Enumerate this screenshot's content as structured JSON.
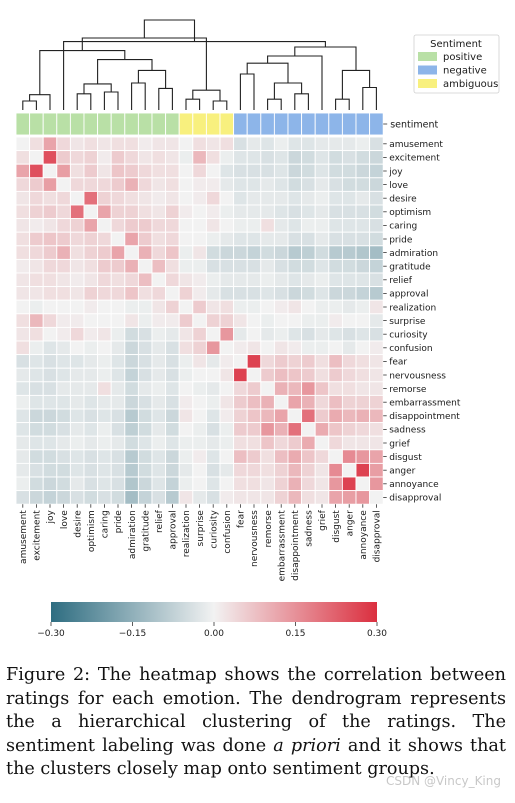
{
  "chart_data": {
    "type": "heatmap",
    "title": "",
    "xlabel": "",
    "ylabel": "",
    "labels": [
      "amusement",
      "excitement",
      "joy",
      "love",
      "desire",
      "optimism",
      "caring",
      "pride",
      "admiration",
      "gratitude",
      "relief",
      "approval",
      "realization",
      "surprise",
      "curiosity",
      "confusion",
      "fear",
      "nervousness",
      "remorse",
      "embarrassment",
      "disappointment",
      "sadness",
      "grief",
      "disgust",
      "anger",
      "annoyance",
      "disapproval"
    ],
    "sentiment": [
      "positive",
      "positive",
      "positive",
      "positive",
      "positive",
      "positive",
      "positive",
      "positive",
      "positive",
      "positive",
      "positive",
      "positive",
      "ambiguous",
      "ambiguous",
      "ambiguous",
      "ambiguous",
      "negative",
      "negative",
      "negative",
      "negative",
      "negative",
      "negative",
      "negative",
      "negative",
      "negative",
      "negative",
      "negative"
    ],
    "sentiment_row_label": "sentiment",
    "legend": {
      "title": "Sentiment",
      "placement": "top-right",
      "items": [
        {
          "label": "positive",
          "color": "#b9e0a6"
        },
        {
          "label": "negative",
          "color": "#8db5e9"
        },
        {
          "label": "ambiguous",
          "color": "#f8f07e"
        }
      ]
    },
    "colorbar": {
      "min": -0.3,
      "max": 0.3,
      "ticks": [
        -0.3,
        -0.15,
        0.0,
        0.15,
        0.3
      ],
      "tick_labels": [
        "−0.30",
        "−0.15",
        "0.00",
        "0.15",
        "0.30"
      ],
      "colors": {
        "low": "#2e6d81",
        "mid": "#f2f2f2",
        "high": "#db2f3f"
      }
    },
    "dendrogram": [
      [
        0,
        1,
        0.1
      ],
      [
        27,
        2,
        0.17
      ],
      [
        4,
        5,
        0.18
      ],
      [
        6,
        7,
        0.2
      ],
      [
        29,
        30,
        0.29
      ],
      [
        8,
        9,
        0.3
      ],
      [
        10,
        11,
        0.24
      ],
      [
        32,
        33,
        0.44
      ],
      [
        31,
        34,
        0.56
      ],
      [
        28,
        35,
        0.66
      ],
      [
        12,
        13,
        0.12
      ],
      [
        14,
        15,
        0.1
      ],
      [
        37,
        38,
        0.22
      ],
      [
        36,
        39,
        0.8
      ],
      [
        16,
        17,
        0.4
      ],
      [
        18,
        19,
        0.12
      ],
      [
        20,
        21,
        0.18
      ],
      [
        42,
        43,
        0.3
      ],
      [
        41,
        44,
        0.52
      ],
      [
        45,
        22,
        0.6
      ],
      [
        23,
        24,
        0.12
      ],
      [
        25,
        26,
        0.25
      ],
      [
        47,
        48,
        0.44
      ],
      [
        46,
        49,
        0.7
      ],
      [
        50,
        3,
        0.76
      ],
      [
        40,
        51,
        1.0
      ]
    ],
    "values": [
      [
        0,
        0.03,
        0.12,
        0.04,
        0.02,
        0.03,
        0.02,
        0.03,
        0.03,
        0.01,
        0.02,
        0.02,
        0,
        0.03,
        0.02,
        0.03,
        -0.04,
        -0.02,
        -0.03,
        -0.01,
        -0.03,
        -0.03,
        -0.02,
        -0.02,
        -0.02,
        -0.01,
        -0.04
      ],
      [
        0.03,
        0,
        0.25,
        0.06,
        0.04,
        0.05,
        0.01,
        0.06,
        0.04,
        0.02,
        0.03,
        0.02,
        -0.01,
        0.09,
        0.03,
        -0.01,
        -0.03,
        -0.03,
        -0.04,
        -0.03,
        -0.06,
        -0.05,
        -0.03,
        -0.05,
        -0.04,
        -0.05,
        -0.06
      ],
      [
        0.12,
        0.25,
        0,
        0.13,
        0.03,
        0.06,
        0.02,
        0.07,
        0.06,
        0.04,
        0.03,
        0.03,
        0,
        0.04,
        0,
        -0.03,
        -0.04,
        -0.04,
        -0.04,
        -0.03,
        -0.06,
        -0.05,
        -0.03,
        -0.05,
        -0.05,
        -0.06,
        -0.07
      ],
      [
        0.04,
        0.06,
        0.13,
        0,
        0.04,
        0.04,
        0.04,
        0.06,
        0.1,
        0.04,
        0.02,
        0.03,
        0,
        0.01,
        0.01,
        -0.02,
        -0.03,
        -0.03,
        -0.02,
        -0.03,
        -0.05,
        -0.04,
        -0.02,
        -0.04,
        -0.05,
        -0.05,
        -0.06
      ],
      [
        0.02,
        0.04,
        0.03,
        0.04,
        0,
        0.2,
        0.05,
        0.04,
        0.03,
        0.02,
        0.01,
        0.02,
        0,
        0.01,
        0.04,
        0,
        -0.03,
        -0.02,
        -0.02,
        -0.02,
        -0.03,
        -0.02,
        -0.01,
        -0.03,
        -0.03,
        -0.02,
        -0.04
      ],
      [
        0.03,
        0.05,
        0.06,
        0.04,
        0.2,
        0,
        0.12,
        0.05,
        0.05,
        0.03,
        0.02,
        0.05,
        0.01,
        0,
        0.01,
        -0.01,
        -0.02,
        -0.02,
        -0.02,
        -0.03,
        -0.04,
        -0.03,
        -0.02,
        -0.04,
        -0.04,
        -0.04,
        -0.05
      ],
      [
        0.02,
        0.01,
        0.02,
        0.04,
        0.05,
        0.12,
        0,
        0.04,
        0.06,
        0.06,
        0.04,
        0.04,
        0,
        0,
        0.02,
        0,
        -0.01,
        -0.01,
        0.03,
        -0.02,
        -0.03,
        -0.01,
        -0.01,
        -0.03,
        -0.03,
        -0.03,
        -0.04
      ],
      [
        0.03,
        0.06,
        0.07,
        0.06,
        0.04,
        0.05,
        0.04,
        0,
        0.12,
        0.06,
        0.03,
        0.04,
        0,
        0,
        -0.01,
        -0.02,
        -0.03,
        -0.03,
        -0.02,
        -0.02,
        -0.04,
        -0.04,
        -0.02,
        -0.04,
        -0.04,
        -0.04,
        -0.05
      ],
      [
        0.03,
        0.04,
        0.06,
        0.1,
        0.03,
        0.05,
        0.06,
        0.12,
        0,
        0.1,
        0.04,
        0.07,
        -0.01,
        0.02,
        -0.05,
        -0.06,
        -0.06,
        -0.07,
        -0.05,
        -0.06,
        -0.09,
        -0.08,
        -0.05,
        -0.09,
        -0.09,
        -0.1,
        -0.12
      ],
      [
        0.01,
        0.02,
        0.04,
        0.04,
        0.02,
        0.03,
        0.06,
        0.06,
        0.1,
        0,
        0.08,
        0.03,
        -0.01,
        -0.01,
        -0.04,
        -0.04,
        -0.04,
        -0.04,
        -0.02,
        -0.04,
        -0.05,
        -0.05,
        -0.03,
        -0.05,
        -0.05,
        -0.06,
        -0.07
      ],
      [
        0.02,
        0.03,
        0.03,
        0.02,
        0.01,
        0.02,
        0.04,
        0.03,
        0.04,
        0.08,
        0,
        0.04,
        0.02,
        0.01,
        -0.01,
        -0.02,
        -0.02,
        -0.02,
        -0.01,
        -0.02,
        -0.03,
        -0.02,
        -0.01,
        -0.03,
        -0.03,
        -0.03,
        -0.04
      ],
      [
        0.02,
        0.02,
        0.03,
        0.03,
        0.02,
        0.05,
        0.04,
        0.04,
        0.07,
        0.03,
        0.04,
        0,
        0.05,
        0.01,
        -0.02,
        -0.04,
        -0.04,
        -0.04,
        -0.03,
        -0.04,
        -0.06,
        -0.05,
        -0.03,
        -0.06,
        -0.06,
        -0.07,
        -0.09
      ],
      [
        0,
        -0.01,
        0,
        0,
        0,
        0.01,
        0,
        0,
        -0.01,
        -0.01,
        0.02,
        0.05,
        0,
        0.06,
        0.02,
        0.03,
        -0.01,
        -0.01,
        0,
        0.01,
        0.02,
        0,
        -0.01,
        -0.01,
        -0.02,
        -0.01,
        0.02
      ],
      [
        0.03,
        0.09,
        0.04,
        0.01,
        0.01,
        0,
        0,
        0,
        0.02,
        -0.01,
        0.01,
        0.01,
        0.06,
        0,
        0.05,
        0.05,
        0.02,
        0,
        -0.01,
        0,
        0,
        -0.01,
        -0.01,
        0.01,
        0,
        0,
        -0.02
      ],
      [
        0.02,
        0.03,
        0,
        0.01,
        0.04,
        0.01,
        0.02,
        -0.01,
        -0.05,
        -0.04,
        -0.01,
        -0.02,
        0.02,
        0.05,
        0,
        0.14,
        -0.02,
        0,
        -0.02,
        -0.01,
        -0.03,
        -0.04,
        -0.02,
        -0.03,
        -0.04,
        -0.03,
        -0.04
      ],
      [
        0.03,
        -0.01,
        -0.03,
        -0.02,
        0,
        -0.01,
        0,
        -0.02,
        -0.06,
        -0.04,
        -0.02,
        -0.04,
        0.03,
        0.05,
        0.14,
        0,
        0.01,
        0.02,
        0,
        0.02,
        0.01,
        -0.01,
        -0.01,
        0,
        -0.02,
        0,
        0.01
      ],
      [
        -0.04,
        -0.03,
        -0.04,
        -0.03,
        -0.03,
        -0.02,
        -0.01,
        -0.03,
        -0.06,
        -0.04,
        -0.02,
        -0.04,
        -0.01,
        0.02,
        -0.02,
        0.01,
        0,
        0.27,
        0.04,
        0.06,
        0.05,
        0.06,
        0.03,
        0.08,
        0.04,
        0.03,
        0.02
      ],
      [
        -0.02,
        -0.03,
        -0.04,
        -0.03,
        -0.02,
        -0.02,
        -0.01,
        -0.03,
        -0.07,
        -0.04,
        -0.02,
        -0.04,
        -0.01,
        0,
        0,
        0.02,
        0.27,
        0,
        0.06,
        0.08,
        0.07,
        0.06,
        0.03,
        0.06,
        0.04,
        0.03,
        0.02
      ],
      [
        -0.03,
        -0.04,
        -0.04,
        -0.02,
        -0.02,
        -0.02,
        0.03,
        -0.02,
        -0.05,
        -0.02,
        -0.01,
        -0.03,
        0,
        -0.01,
        -0.02,
        0,
        0.04,
        0.06,
        0,
        0.1,
        0.09,
        0.14,
        0.07,
        0.03,
        0.03,
        0.02,
        0.02
      ],
      [
        -0.01,
        -0.03,
        -0.03,
        -0.03,
        -0.02,
        -0.03,
        -0.02,
        -0.02,
        -0.06,
        -0.04,
        -0.02,
        -0.04,
        0.01,
        0,
        -0.01,
        0.02,
        0.06,
        0.08,
        0.1,
        0,
        0.12,
        0.1,
        0.04,
        0.08,
        0.05,
        0.05,
        0.05
      ],
      [
        -0.03,
        -0.06,
        -0.06,
        -0.05,
        -0.03,
        -0.04,
        -0.03,
        -0.04,
        -0.09,
        -0.05,
        -0.03,
        -0.06,
        0.02,
        0,
        -0.03,
        0.01,
        0.05,
        0.07,
        0.09,
        0.12,
        0,
        0.2,
        0.06,
        0.11,
        0.09,
        0.1,
        0.09
      ],
      [
        -0.03,
        -0.05,
        -0.05,
        -0.04,
        -0.02,
        -0.03,
        -0.01,
        -0.04,
        -0.08,
        -0.05,
        -0.02,
        -0.05,
        0,
        -0.01,
        -0.04,
        -0.01,
        0.06,
        0.06,
        0.14,
        0.1,
        0.2,
        0,
        0.11,
        0.07,
        0.05,
        0.04,
        0.03
      ],
      [
        -0.02,
        -0.03,
        -0.03,
        -0.02,
        -0.01,
        -0.02,
        -0.01,
        -0.02,
        -0.05,
        -0.03,
        -0.01,
        -0.03,
        -0.01,
        -0.01,
        -0.02,
        -0.01,
        0.03,
        0.03,
        0.07,
        0.04,
        0.06,
        0.11,
        0,
        0.04,
        0.02,
        0.02,
        0.02
      ],
      [
        -0.02,
        -0.05,
        -0.05,
        -0.04,
        -0.03,
        -0.04,
        -0.03,
        -0.04,
        -0.09,
        -0.05,
        -0.03,
        -0.06,
        -0.01,
        0.01,
        -0.03,
        0,
        0.08,
        0.06,
        0.03,
        0.08,
        0.11,
        0.07,
        0.04,
        0,
        0.16,
        0.14,
        0.12
      ],
      [
        -0.02,
        -0.04,
        -0.05,
        -0.05,
        -0.03,
        -0.04,
        -0.03,
        -0.04,
        -0.09,
        -0.05,
        -0.03,
        -0.06,
        -0.02,
        0,
        -0.04,
        -0.02,
        0.04,
        0.04,
        0.03,
        0.05,
        0.09,
        0.05,
        0.02,
        0.16,
        0,
        0.27,
        0.13
      ],
      [
        -0.01,
        -0.05,
        -0.06,
        -0.05,
        -0.02,
        -0.04,
        -0.03,
        -0.04,
        -0.1,
        -0.06,
        -0.03,
        -0.07,
        -0.01,
        0,
        -0.03,
        0,
        0.03,
        0.03,
        0.02,
        0.05,
        0.1,
        0.04,
        0.02,
        0.14,
        0.27,
        0,
        0.14
      ],
      [
        -0.04,
        -0.06,
        -0.07,
        -0.06,
        -0.04,
        -0.05,
        -0.04,
        -0.05,
        -0.12,
        -0.07,
        -0.04,
        -0.09,
        0.02,
        -0.02,
        -0.04,
        0.01,
        0.02,
        0.02,
        0.02,
        0.05,
        0.09,
        0.03,
        0.02,
        0.12,
        0.13,
        0.14,
        0
      ]
    ]
  },
  "caption": {
    "prefix": "Figure 2: The heatmap shows the correlation between ratings for each emotion. The dendrogram represents the a hierarchical clustering of the ratings. The sentiment labeling was done ",
    "emphasis": "a priori",
    "suffix": " and it shows that the clusters closely map onto sentiment groups."
  },
  "watermark": "CSDN @Vincy_King"
}
